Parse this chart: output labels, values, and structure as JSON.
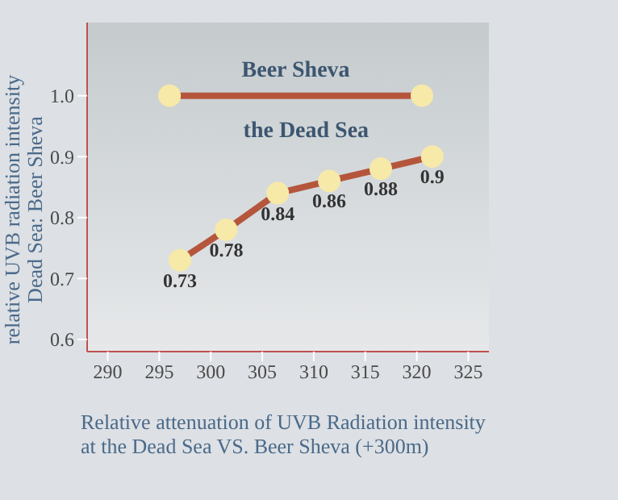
{
  "chart_data": {
    "type": "line",
    "xlabel": "Relative attenuation of UVB Radiation intensity\nat the Dead Sea VS. Beer Sheva (+300m)",
    "ylabel": "relative UVB radiation intensity\nDead Sea: Beer Sheva",
    "series": [
      {
        "name": "Beer Sheva",
        "color": "#b5563c",
        "x": [
          296,
          320.5
        ],
        "values": [
          1.0,
          1.0
        ]
      },
      {
        "name": "the Dead Sea",
        "color": "#b5563c",
        "x": [
          297,
          301.5,
          306.5,
          311.5,
          316.5,
          321.5
        ],
        "values": [
          0.73,
          0.78,
          0.84,
          0.86,
          0.88,
          0.9
        ],
        "value_labels": [
          "0.73",
          "0.78",
          "0.84",
          "0.86",
          "0.88",
          "0.9"
        ]
      }
    ],
    "xlim": [
      288,
      327
    ],
    "xticks": [
      290,
      295,
      300,
      305,
      310,
      315,
      320,
      325
    ],
    "ylim": [
      0.58,
      1.12
    ],
    "yticks": [
      0.6,
      0.7,
      0.8,
      0.9,
      {
        "value": 1,
        "label": "1.0"
      }
    ],
    "grid": false,
    "marker": "circle",
    "line_style": "solid"
  }
}
